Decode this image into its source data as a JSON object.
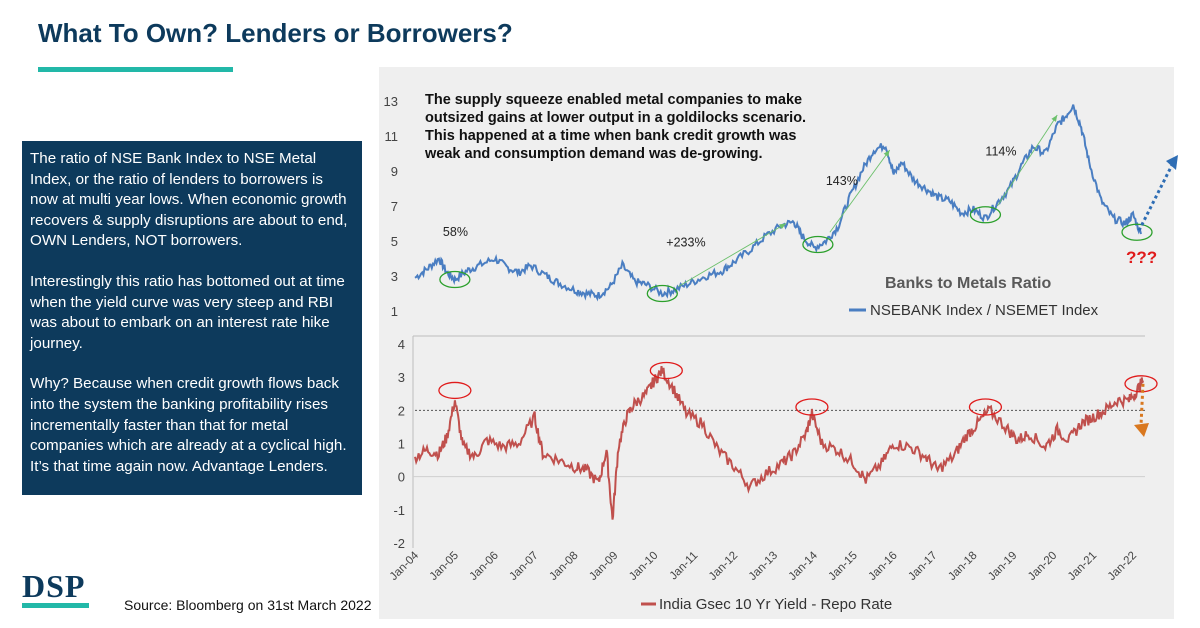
{
  "title": "What To Own? Lenders or Borrowers?",
  "textbox": {
    "paragraph_1": "The ratio of NSE Bank Index to NSE Metal Index, or the ratio of lenders to borrowers is now at multi year lows. When economic growth recovers & supply disruptions are about to end, OWN Lenders, NOT borrowers.",
    "paragraph_2": "Interestingly this ratio has bottomed out at time when the yield curve was very steep and RBI was about to embark on an interest rate hike journey.",
    "paragraph_3": "Why? Because when credit growth flows back into the system the banking profitability rises incrementally faster than that for metal companies which are already at a cyclical high. It’s that time again now. Advantage Lenders."
  },
  "logo": "DSP",
  "source": "Source: Bloomberg on 31st March 2022",
  "colors": {
    "navy": "#0d3a5c",
    "teal": "#22b8a8",
    "ratio_line": "#4a7ec2",
    "yield_line": "#c0504d",
    "highlight": "#2ca02c",
    "arrow_orange": "#d9781f",
    "arrow_blue": "#2e6db4",
    "question_red": "#e01b1b"
  },
  "chart_data": [
    {
      "type": "line",
      "title": "Banks to Metals Ratio",
      "legend": "NSEBANK Index / NSEMET Index",
      "yticks": [
        1,
        3,
        5,
        7,
        9,
        11,
        13
      ],
      "ylim": [
        0,
        14
      ],
      "xlim": [
        2004.0,
        2022.3
      ],
      "annotation_text": "The supply squeeze enabled metal companies to make outsized gains at lower output in a goldilocks scenario. This happened at a time when bank credit growth was weak and consumption demand was de-growing.",
      "rise_labels": [
        "58%",
        "+233%",
        "143%",
        "114%"
      ],
      "question_label": "???",
      "x": [
        2004.0,
        2004.3,
        2004.6,
        2004.8,
        2005.0,
        2005.3,
        2005.6,
        2006.0,
        2006.3,
        2006.6,
        2006.9,
        2007.3,
        2007.6,
        2008.0,
        2008.3,
        2008.6,
        2008.9,
        2009.2,
        2009.5,
        2009.8,
        2010.2,
        2010.5,
        2010.9,
        2011.3,
        2011.7,
        2012.0,
        2012.4,
        2012.8,
        2013.2,
        2013.5,
        2013.7,
        2014.0,
        2014.3,
        2014.6,
        2014.9,
        2015.2,
        2015.5,
        2015.8,
        2016.0,
        2016.2,
        2016.5,
        2016.8,
        2017.1,
        2017.4,
        2017.7,
        2018.0,
        2018.3,
        2018.6,
        2018.9,
        2019.2,
        2019.5,
        2019.8,
        2020.1,
        2020.3,
        2020.5,
        2020.7,
        2020.9,
        2021.2,
        2021.5,
        2021.8,
        2022.0,
        2022.2
      ],
      "values": [
        2.9,
        3.4,
        4.0,
        3.2,
        2.8,
        3.3,
        3.6,
        4.0,
        3.5,
        3.2,
        3.6,
        3.0,
        2.6,
        2.2,
        2.0,
        1.9,
        2.4,
        3.6,
        2.7,
        2.5,
        2.0,
        2.2,
        2.6,
        3.0,
        3.3,
        3.8,
        4.5,
        5.3,
        5.9,
        6.1,
        5.3,
        4.6,
        5.0,
        5.8,
        7.5,
        9.0,
        10.2,
        10.5,
        8.8,
        9.5,
        8.5,
        8.0,
        7.5,
        7.3,
        6.6,
        6.8,
        6.3,
        7.2,
        8.0,
        9.3,
        10.4,
        10.0,
        11.6,
        12.1,
        12.8,
        11.5,
        9.5,
        7.3,
        6.3,
        6.0,
        6.5,
        5.4
      ]
    },
    {
      "type": "line",
      "legend": "India Gsec 10 Yr Yield - Repo Rate",
      "yticks": [
        -2,
        -1,
        0,
        1,
        2,
        3,
        4
      ],
      "ylim": [
        -2,
        4
      ],
      "xlim": [
        2004.0,
        2022.3
      ],
      "reference_line": 2,
      "x_tick_labels": [
        "Jan-04",
        "Jan-05",
        "Jan-06",
        "Jan-07",
        "Jan-08",
        "Jan-09",
        "Jan-10",
        "Jan-11",
        "Jan-12",
        "Jan-13",
        "Jan-14",
        "Jan-15",
        "Jan-16",
        "Jan-17",
        "Jan-18",
        "Jan-19",
        "Jan-20",
        "Jan-21",
        "Jan-22"
      ],
      "x": [
        2004.0,
        2004.3,
        2004.6,
        2004.8,
        2005.0,
        2005.2,
        2005.5,
        2005.8,
        2006.2,
        2006.6,
        2007.0,
        2007.2,
        2007.6,
        2008.0,
        2008.3,
        2008.6,
        2008.8,
        2008.95,
        2009.1,
        2009.3,
        2009.5,
        2009.8,
        2010.0,
        2010.2,
        2010.5,
        2010.8,
        2011.2,
        2011.6,
        2012.0,
        2012.4,
        2012.8,
        2013.2,
        2013.5,
        2013.8,
        2013.95,
        2014.2,
        2014.6,
        2015.0,
        2015.3,
        2015.7,
        2016.0,
        2016.4,
        2016.8,
        2017.1,
        2017.5,
        2017.8,
        2018.1,
        2018.4,
        2018.8,
        2019.1,
        2019.4,
        2019.8,
        2020.1,
        2020.4,
        2020.7,
        2021.0,
        2021.3,
        2021.6,
        2021.9,
        2022.1,
        2022.25
      ],
      "values": [
        0.6,
        0.8,
        0.7,
        1.2,
        2.3,
        0.9,
        0.6,
        1.1,
        0.9,
        1.0,
        1.8,
        0.7,
        0.5,
        0.3,
        0.2,
        -0.2,
        0.8,
        -1.3,
        0.9,
        1.8,
        2.2,
        2.5,
        2.9,
        3.2,
        2.6,
        1.9,
        1.6,
        0.8,
        0.3,
        -0.3,
        0.1,
        0.4,
        0.7,
        1.3,
        1.9,
        1.0,
        0.8,
        0.4,
        -0.1,
        0.4,
        1.0,
        0.9,
        0.6,
        0.2,
        0.6,
        1.2,
        1.6,
        2.0,
        1.5,
        1.1,
        1.3,
        0.9,
        1.4,
        1.1,
        1.6,
        1.8,
        2.0,
        2.3,
        2.3,
        2.6,
        2.9
      ]
    }
  ]
}
